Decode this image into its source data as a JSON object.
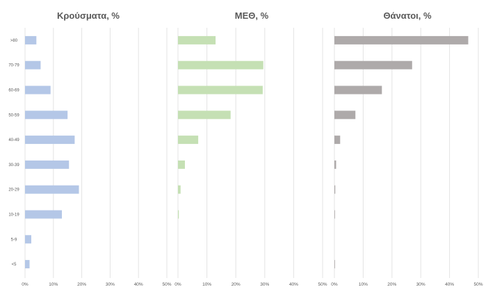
{
  "chart_data": [
    {
      "type": "bar",
      "orientation": "horizontal",
      "title": "Κρούσματα, %",
      "categories": [
        ">80",
        "70-79",
        "60-69",
        "50-59",
        "40-49",
        "30-39",
        "20-29",
        "10-19",
        "5-9",
        "<5"
      ],
      "values": [
        4,
        5.5,
        9,
        15,
        17.5,
        15.5,
        19,
        13,
        2.2,
        1.6
      ],
      "xlim": [
        0,
        50
      ],
      "xticks": [
        "0%",
        "10%",
        "20%",
        "30%",
        "40%",
        "50%"
      ],
      "color": "#b4c7e7",
      "grid": "vertical"
    },
    {
      "type": "bar",
      "orientation": "horizontal",
      "title": "ΜΕΘ, %",
      "categories": [
        ">80",
        "70-79",
        "60-69",
        "50-59",
        "40-49",
        "30-39",
        "20-29",
        "10-19",
        "5-9",
        "<5"
      ],
      "values": [
        13,
        29.5,
        29.3,
        18.2,
        7,
        2.4,
        0.9,
        0.3,
        0,
        0
      ],
      "xlim": [
        0,
        50
      ],
      "xticks": [
        "0%",
        "10%",
        "20%",
        "30%",
        "40%",
        "50%"
      ],
      "color": "#c5e0b4",
      "grid": "vertical"
    },
    {
      "type": "bar",
      "orientation": "horizontal",
      "title": "Θάνατοι, %",
      "categories": [
        ">80",
        "70-79",
        "60-69",
        "50-59",
        "40-49",
        "30-39",
        "20-29",
        "10-19",
        "5-9",
        "<5"
      ],
      "values": [
        46.5,
        27,
        16.5,
        7.3,
        2,
        0.6,
        0.3,
        0.2,
        0,
        0.2
      ],
      "xlim": [
        0,
        50
      ],
      "xticks": [
        "0%",
        "10%",
        "20%",
        "30%",
        "40%",
        "50%"
      ],
      "color": "#aeaaaa",
      "grid": "vertical"
    }
  ]
}
